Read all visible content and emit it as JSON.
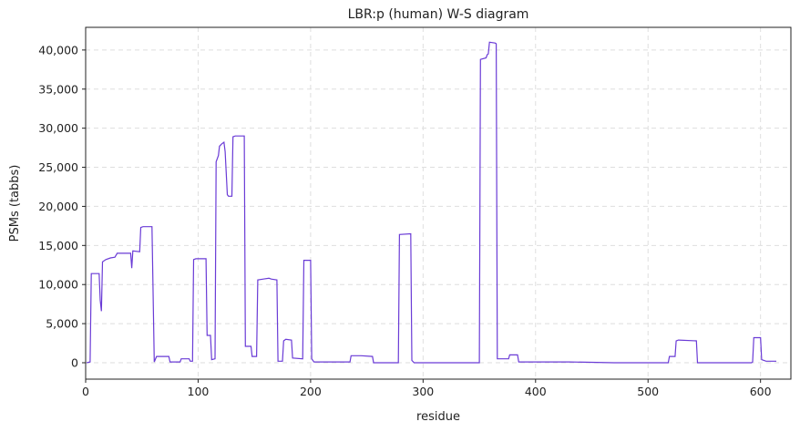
{
  "chart_data": {
    "type": "line",
    "title": "LBR:p (human) W-S diagram",
    "x_label": "residue",
    "y_label": "PSMs (tabbs)",
    "x": [
      1,
      4,
      5,
      12,
      13,
      14,
      15,
      18,
      22,
      26,
      28,
      40,
      41,
      42,
      48,
      49,
      51,
      59,
      61,
      63,
      74,
      75,
      84,
      85,
      92,
      93,
      95,
      96,
      98,
      107,
      108,
      111,
      112,
      115,
      116,
      118,
      119,
      121,
      123,
      124,
      126,
      127,
      130,
      131,
      133,
      141,
      142,
      147,
      148,
      152,
      153,
      158,
      163,
      165,
      170,
      171,
      175,
      176,
      178,
      183,
      184,
      193,
      194,
      200,
      201,
      203,
      235,
      236,
      245,
      255,
      256,
      278,
      279,
      289,
      290,
      292,
      350,
      351,
      356,
      357,
      358,
      359,
      364,
      365,
      366,
      376,
      377,
      384,
      385,
      430,
      470,
      518,
      519,
      524,
      525,
      527,
      543,
      544,
      592,
      593,
      594,
      600,
      601,
      605,
      614
    ],
    "values": [
      0,
      100,
      11400,
      11400,
      8000,
      6600,
      12900,
      13200,
      13400,
      13500,
      14000,
      14000,
      12100,
      14300,
      14200,
      17300,
      17400,
      17400,
      100,
      800,
      800,
      100,
      100,
      500,
      500,
      200,
      200,
      13200,
      13300,
      13300,
      3500,
      3500,
      400,
      500,
      25700,
      26500,
      27700,
      28000,
      28200,
      27000,
      21500,
      21300,
      21300,
      28900,
      29000,
      29000,
      2100,
      2100,
      800,
      800,
      10600,
      10700,
      10800,
      10700,
      10600,
      200,
      200,
      2800,
      3000,
      2900,
      600,
      500,
      13100,
      13100,
      500,
      100,
      100,
      900,
      900,
      800,
      0,
      0,
      16400,
      16500,
      300,
      0,
      0,
      38800,
      39000,
      39400,
      39500,
      41000,
      40900,
      40800,
      500,
      500,
      1000,
      1000,
      100,
      100,
      0,
      0,
      800,
      800,
      2800,
      2900,
      2800,
      0,
      0,
      100,
      3200,
      3200,
      400,
      200,
      200
    ],
    "color": "#6a3bd6",
    "xlim": [
      0,
      627
    ],
    "xticks": [
      0,
      100,
      200,
      300,
      400,
      500,
      600
    ],
    "ylim": [
      -2100,
      42900
    ],
    "yticks": [
      0,
      {
        "value": 5000,
        "label": "5,000"
      },
      {
        "value": 10000,
        "label": "10,000"
      },
      {
        "value": 15000,
        "label": "15,000"
      },
      {
        "value": 20000,
        "label": "20,000"
      },
      {
        "value": 25000,
        "label": "25,000"
      },
      {
        "value": 30000,
        "label": "30,000"
      },
      {
        "value": 35000,
        "label": "35,000"
      },
      {
        "value": 40000,
        "label": "40,000"
      }
    ],
    "grid": true
  }
}
